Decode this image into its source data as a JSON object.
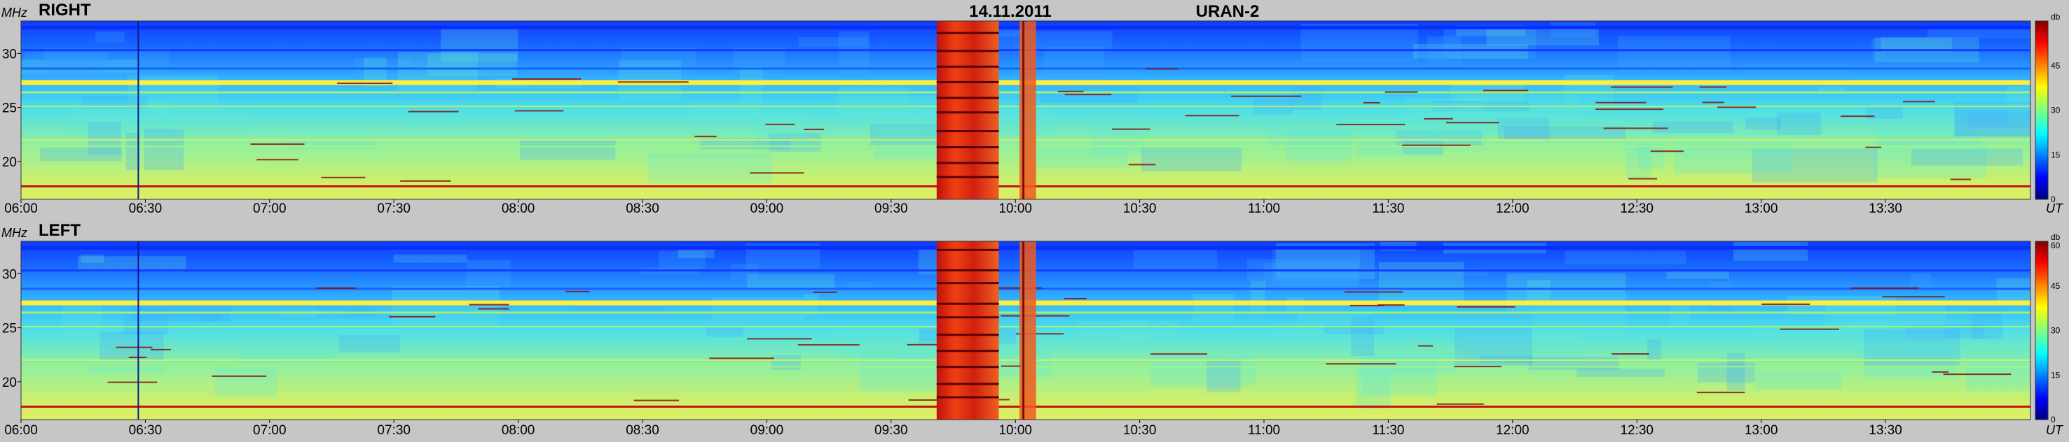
{
  "header": {
    "date": "14.11.2011",
    "instrument": "URAN-2"
  },
  "chart_data": {
    "type": "heatmap",
    "x_unit": "UT",
    "y_unit": "MHz",
    "x_ticks": [
      "06:00",
      "06:30",
      "07:00",
      "07:30",
      "08:00",
      "08:30",
      "09:00",
      "09:30",
      "10:00",
      "10:30",
      "11:00",
      "11:30",
      "12:00",
      "12:30",
      "13:00",
      "13:30"
    ],
    "x_range": [
      "06:00",
      "14:05"
    ],
    "y_ticks": [
      20,
      25,
      30
    ],
    "y_range": [
      16.5,
      33
    ],
    "colorbar": {
      "unit": "db",
      "ticks": [
        0,
        15,
        30,
        45,
        60
      ],
      "range": [
        0,
        60
      ]
    },
    "colormap": [
      "#00007f",
      "#0000ff",
      "#007fff",
      "#00ffff",
      "#7fff7f",
      "#ffff00",
      "#ff7f00",
      "#ff0000",
      "#7f0000"
    ],
    "panels": [
      {
        "name": "RIGHT"
      },
      {
        "name": "LEFT"
      }
    ]
  }
}
